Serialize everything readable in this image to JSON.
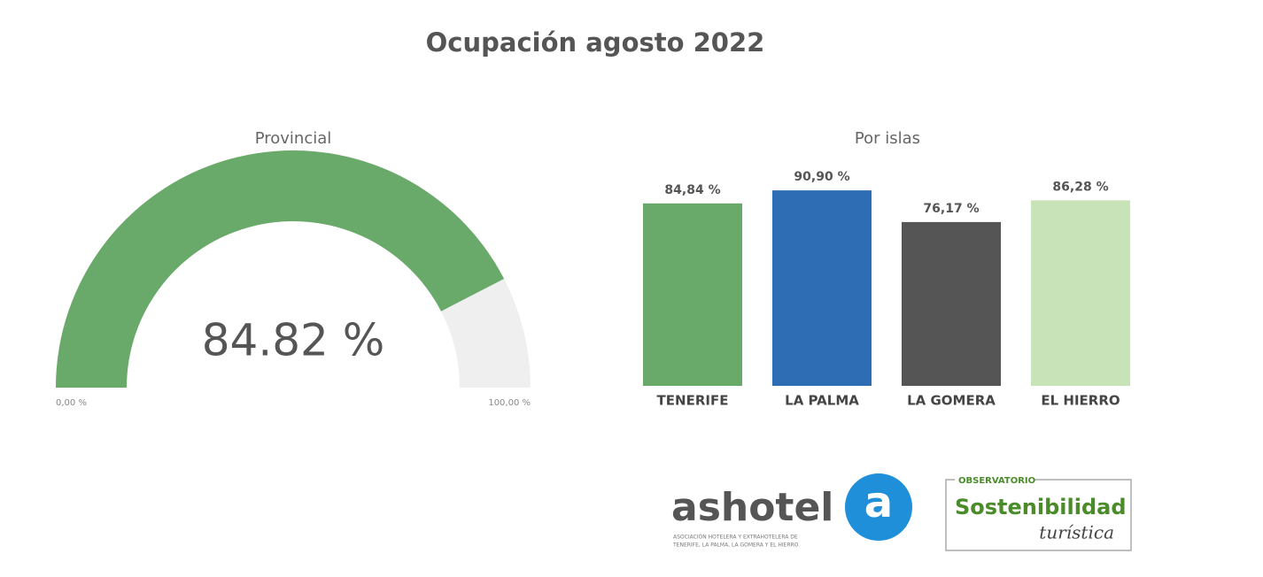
{
  "title": "Ocupación agosto 2022",
  "chart_data": [
    {
      "type": "gauge",
      "title": "Provincial",
      "value": 84.82,
      "value_label": "84.82 %",
      "ylim": [
        0,
        100
      ],
      "yticks": [
        {
          "value": 0,
          "label": "0,00 %"
        },
        {
          "value": 100,
          "label": "100,00 %"
        }
      ],
      "color": "#69a969",
      "track_color": "#efefef"
    },
    {
      "type": "bar",
      "title": "Por islas",
      "categories": [
        "TENERIFE",
        "LA PALMA",
        "LA GOMERA",
        "EL HIERRO"
      ],
      "values": [
        84.84,
        90.9,
        76.17,
        86.28
      ],
      "value_labels": [
        "84,84 %",
        "90,90 %",
        "76,17 %",
        "86,28 %"
      ],
      "colors": [
        "#69a969",
        "#2e6db4",
        "#555555",
        "#c9e3b9"
      ]
    }
  ],
  "logos": {
    "ashotel": "ashotel",
    "ashotel_icon": "a",
    "ashotel_subtitle_1": "ASOCIACIÓN HOTELERA Y EXTRAHOTELERA DE",
    "ashotel_subtitle_2": "TENERIFE, LA PALMA, LA GOMERA Y EL HIERRO",
    "observatorio": "OBSERVATORIO",
    "sostenibilidad": "Sostenibilidad",
    "turistica": "turística"
  }
}
